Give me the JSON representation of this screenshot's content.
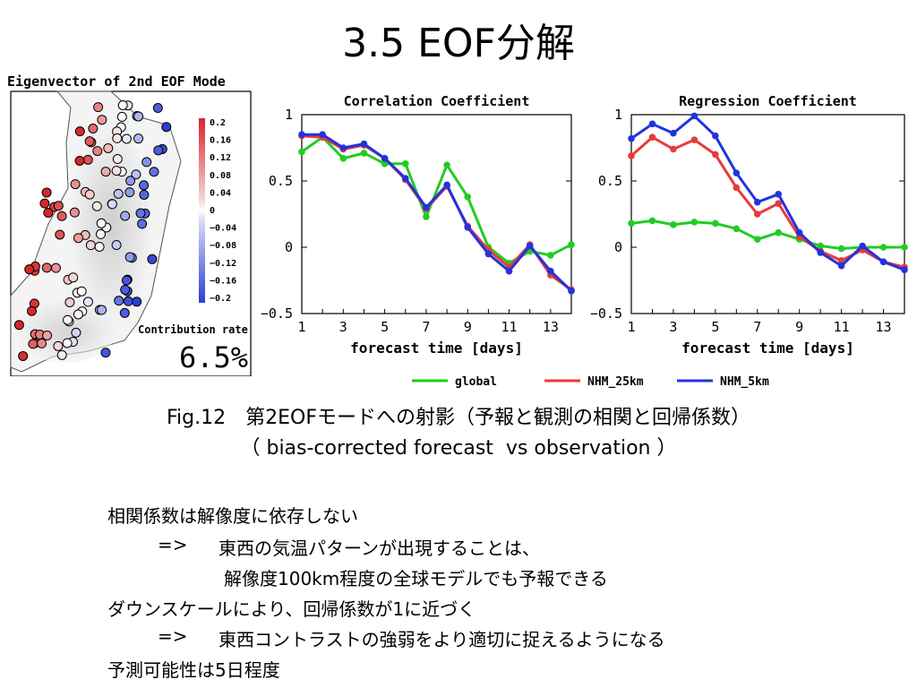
{
  "title": "3.5 EOF分解",
  "map": {
    "title": "Eigenvector of 2nd EOF Mode",
    "colorbar_ticks": [
      "0.2",
      "0.16",
      "0.12",
      "0.08",
      "0.04",
      "0",
      "−0.04",
      "−0.08",
      "−0.12",
      "−0.16",
      "−0.2"
    ],
    "contribution_label": "Contribution rate",
    "contribution_value": "6.5%",
    "colors": {
      "positive": "#d7262b",
      "negative": "#2b3fd6"
    }
  },
  "chart_data": [
    {
      "type": "line",
      "title": "Correlation Coefficient",
      "xlabel": "forecast time [days]",
      "ylabel": "",
      "xlim": [
        1,
        14
      ],
      "ylim": [
        -0.5,
        1
      ],
      "xticks": [
        "1",
        "3",
        "5",
        "7",
        "9",
        "11",
        "13"
      ],
      "yticks": [
        "1",
        "0.5",
        "0",
        "−0.5"
      ],
      "x": [
        1,
        2,
        3,
        4,
        5,
        6,
        7,
        8,
        9,
        10,
        11,
        12,
        13,
        14
      ],
      "series": [
        {
          "name": "global",
          "color": "#22cc22",
          "values": [
            0.72,
            0.83,
            0.67,
            0.71,
            0.63,
            0.63,
            0.23,
            0.62,
            0.38,
            0.0,
            -0.12,
            -0.03,
            -0.06,
            0.02
          ]
        },
        {
          "name": "NHM_25km",
          "color": "#e83a3a",
          "values": [
            0.84,
            0.83,
            0.74,
            0.77,
            0.67,
            0.51,
            0.29,
            0.46,
            0.16,
            -0.02,
            -0.15,
            0.02,
            -0.21,
            -0.32
          ]
        },
        {
          "name": "NHM_5km",
          "color": "#2233dd",
          "values": [
            0.85,
            0.85,
            0.75,
            0.78,
            0.67,
            0.52,
            0.3,
            0.47,
            0.15,
            -0.05,
            -0.18,
            0.01,
            -0.18,
            -0.33
          ]
        }
      ]
    },
    {
      "type": "line",
      "title": "Regression Coefficient",
      "xlabel": "forecast time [days]",
      "ylabel": "",
      "xlim": [
        1,
        14
      ],
      "ylim": [
        -0.5,
        1
      ],
      "xticks": [
        "1",
        "3",
        "5",
        "7",
        "9",
        "11",
        "13"
      ],
      "yticks": [
        "1",
        "0.5",
        "0",
        "−0.5"
      ],
      "x": [
        1,
        2,
        3,
        4,
        5,
        6,
        7,
        8,
        9,
        10,
        11,
        12,
        13,
        14
      ],
      "series": [
        {
          "name": "global",
          "color": "#22cc22",
          "values": [
            0.18,
            0.2,
            0.17,
            0.19,
            0.18,
            0.14,
            0.06,
            0.11,
            0.06,
            0.01,
            -0.01,
            0.0,
            0.0,
            0.0
          ]
        },
        {
          "name": "NHM_25km",
          "color": "#e83a3a",
          "values": [
            0.69,
            0.83,
            0.74,
            0.81,
            0.7,
            0.45,
            0.25,
            0.33,
            0.08,
            -0.03,
            -0.1,
            -0.02,
            -0.11,
            -0.15
          ]
        },
        {
          "name": "NHM_5km",
          "color": "#2233dd",
          "values": [
            0.82,
            0.93,
            0.86,
            0.99,
            0.84,
            0.56,
            0.34,
            0.4,
            0.11,
            -0.04,
            -0.14,
            0.01,
            -0.11,
            -0.17
          ]
        }
      ]
    }
  ],
  "caption": {
    "line1": "Fig.12　第2EOFモードへの射影（予報と観測の相関と回帰係数）",
    "line2": "（ bias-corrected forecast  vs observation ）"
  },
  "body": {
    "line1": "相関係数は解像度に依存しない",
    "line2_arrow": "=>",
    "line2": "東西の気温パターンが出現することは、",
    "line3": "解像度100km程度の全球モデルでも予報できる",
    "line4": "ダウンスケールにより、回帰係数が1に近づく",
    "line5_arrow": "=>",
    "line5": "東西コントラストの強弱をより適切に捉えるようになる",
    "line6": "予測可能性は5日程度"
  }
}
